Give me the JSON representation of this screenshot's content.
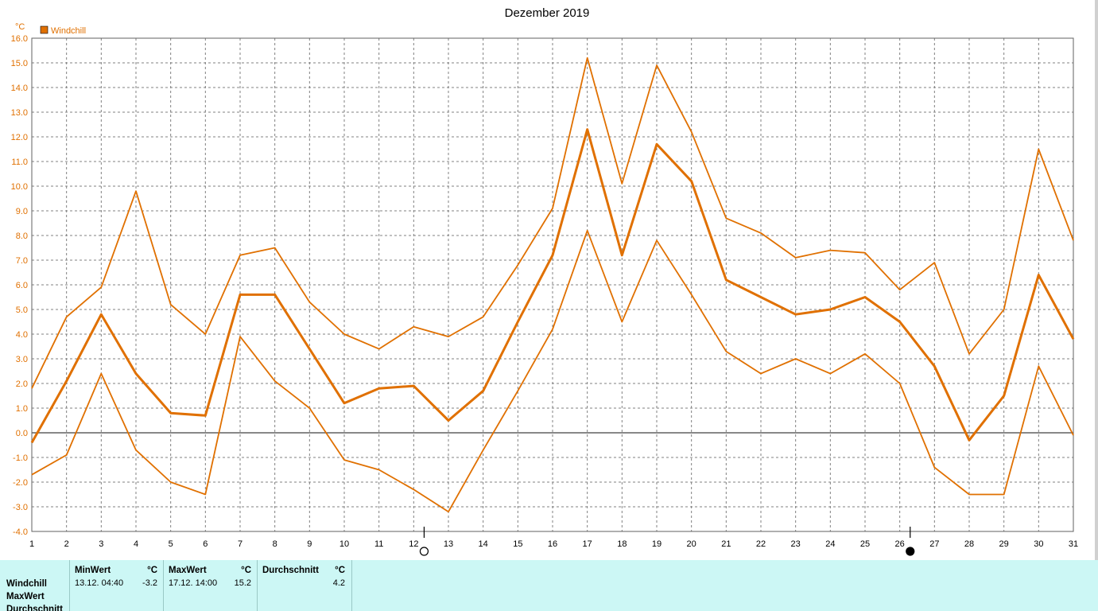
{
  "chart_data": {
    "type": "line",
    "title": "Dezember 2019",
    "y_unit": "°C",
    "legend": [
      {
        "name": "Windchill",
        "color": "#e07000"
      }
    ],
    "x": [
      1,
      2,
      3,
      4,
      5,
      6,
      7,
      8,
      9,
      10,
      11,
      12,
      13,
      14,
      15,
      16,
      17,
      18,
      19,
      20,
      21,
      22,
      23,
      24,
      25,
      26,
      27,
      28,
      29,
      30,
      31
    ],
    "ylim": [
      -4.0,
      16.0
    ],
    "yticks": [
      "16.0",
      "15.0",
      "14.0",
      "13.0",
      "12.0",
      "11.0",
      "10.0",
      "9.0",
      "8.0",
      "7.0",
      "6.0",
      "5.0",
      "4.0",
      "3.0",
      "2.0",
      "1.0",
      "0.0",
      "-1.0",
      "-2.0",
      "-3.0",
      "-4.0"
    ],
    "grid": true,
    "legend_position": "top-left",
    "series": [
      {
        "role": "max",
        "values": [
          1.8,
          4.7,
          5.9,
          9.8,
          5.2,
          4.0,
          7.2,
          7.5,
          5.3,
          4.0,
          3.4,
          4.3,
          3.9,
          4.7,
          6.8,
          9.1,
          15.2,
          10.1,
          14.9,
          12.2,
          8.7,
          8.1,
          7.1,
          7.4,
          7.3,
          5.8,
          6.9,
          3.2,
          5.0,
          11.5,
          7.8
        ]
      },
      {
        "role": "avg",
        "values": [
          -0.4,
          2.1,
          4.8,
          2.4,
          0.8,
          0.7,
          5.6,
          5.6,
          3.4,
          1.2,
          1.8,
          1.9,
          0.5,
          1.7,
          4.5,
          7.2,
          12.3,
          7.2,
          11.7,
          10.2,
          6.2,
          5.5,
          4.8,
          5.0,
          5.5,
          4.5,
          2.7,
          -0.3,
          1.5,
          6.4,
          3.8
        ]
      },
      {
        "role": "min",
        "values": [
          -1.7,
          -0.9,
          2.4,
          -0.7,
          -2.0,
          -2.5,
          3.9,
          2.1,
          1.0,
          -1.1,
          -1.5,
          -2.3,
          -3.2,
          -0.7,
          1.7,
          4.2,
          8.2,
          4.5,
          7.8,
          5.6,
          3.3,
          2.4,
          3.0,
          2.4,
          3.2,
          2.0,
          -1.4,
          -2.5,
          -2.5,
          2.7,
          -0.1
        ]
      }
    ],
    "moon_phases": [
      {
        "day": 12,
        "phase": "full-moon"
      },
      {
        "day": 26,
        "phase": "new-moon"
      }
    ]
  },
  "colors": {
    "line": "#e07000",
    "grid": "#808080",
    "zero": "#606060",
    "panel": "#ccf7f5"
  },
  "stats": {
    "rows": [
      "Windchill",
      "MaxWert",
      "Durchschnitt"
    ],
    "min": {
      "header": "MinWert",
      "unit": "°C",
      "time": "13.12.  04:40",
      "value": "-3.2"
    },
    "max": {
      "header": "MaxWert",
      "unit": "°C",
      "time": "17.12.  14:00",
      "value": "15.2"
    },
    "avg": {
      "header": "Durchschnitt",
      "unit": "°C",
      "value": "4.2"
    }
  }
}
